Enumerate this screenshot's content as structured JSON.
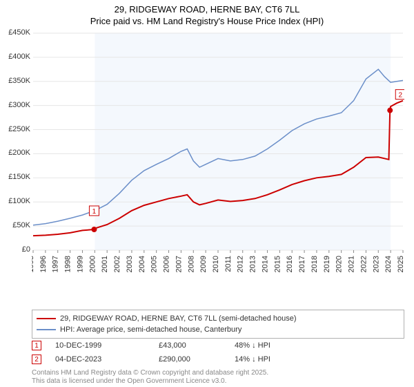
{
  "title": {
    "line1": "29, RIDGEWAY ROAD, HERNE BAY, CT6 7LL",
    "line2": "Price paid vs. HM Land Registry's House Price Index (HPI)",
    "fontsize": 13,
    "color": "#000000"
  },
  "chart": {
    "type": "line",
    "background_color": "#ffffff",
    "plot_band_color": "#f4f8fd",
    "plot_band_xstart": 2000,
    "plot_band_xend": 2024,
    "grid_color": "#e6e6e6",
    "axis_color": "#888888",
    "xlim": [
      1995,
      2025
    ],
    "x_ticks": [
      1995,
      1996,
      1997,
      1998,
      1999,
      2000,
      2001,
      2002,
      2003,
      2004,
      2005,
      2006,
      2007,
      2008,
      2009,
      2010,
      2011,
      2012,
      2013,
      2014,
      2015,
      2016,
      2017,
      2018,
      2019,
      2020,
      2021,
      2022,
      2023,
      2024,
      2025
    ],
    "x_tick_label_rotation": -90,
    "x_tick_fontsize": 11,
    "ylim": [
      0,
      450000
    ],
    "y_ticks": [
      0,
      50000,
      100000,
      150000,
      200000,
      250000,
      300000,
      350000,
      400000,
      450000
    ],
    "y_tick_labels": [
      "£0",
      "£50K",
      "£100K",
      "£150K",
      "£200K",
      "£250K",
      "£300K",
      "£350K",
      "£400K",
      "£450K"
    ],
    "y_tick_fontsize": 11,
    "series": [
      {
        "name": "hpi",
        "label": "HPI: Average price, semi-detached house, Canterbury",
        "color": "#6b8fc9",
        "line_width": 1.5,
        "x": [
          1995,
          1996,
          1997,
          1998,
          1999,
          2000,
          2001,
          2002,
          2003,
          2004,
          2005,
          2006,
          2007,
          2007.5,
          2008,
          2008.5,
          2009,
          2010,
          2011,
          2012,
          2013,
          2014,
          2015,
          2016,
          2017,
          2018,
          2019,
          2020,
          2021,
          2022,
          2023,
          2023.5,
          2024,
          2024.5,
          2025
        ],
        "y": [
          52000,
          55000,
          60000,
          66000,
          73000,
          82000,
          95000,
          118000,
          145000,
          165000,
          178000,
          190000,
          205000,
          210000,
          185000,
          172000,
          178000,
          190000,
          185000,
          188000,
          195000,
          210000,
          228000,
          248000,
          262000,
          272000,
          278000,
          285000,
          310000,
          355000,
          375000,
          360000,
          348000,
          350000,
          352000
        ]
      },
      {
        "name": "price_paid",
        "label": "29, RIDGEWAY ROAD, HERNE BAY, CT6 7LL (semi-detached house)",
        "color": "#cc0000",
        "line_width": 2,
        "x": [
          1995,
          1996,
          1997,
          1998,
          1999,
          1999.95,
          2000,
          2001,
          2002,
          2003,
          2004,
          2005,
          2006,
          2007,
          2007.5,
          2008,
          2008.5,
          2009,
          2010,
          2011,
          2012,
          2013,
          2014,
          2015,
          2016,
          2017,
          2018,
          2019,
          2020,
          2021,
          2022,
          2023,
          2023.85,
          2023.95,
          2024,
          2024.5,
          2025
        ],
        "y": [
          30000,
          31000,
          33000,
          36000,
          41000,
          43000,
          45000,
          53000,
          66000,
          82000,
          93000,
          100000,
          107000,
          112000,
          115000,
          100000,
          94000,
          97000,
          104000,
          101000,
          103000,
          107000,
          115000,
          125000,
          136000,
          144000,
          150000,
          153000,
          157000,
          172000,
          192000,
          193000,
          188000,
          290000,
          298000,
          305000,
          310000
        ]
      }
    ],
    "markers": [
      {
        "id": "1",
        "x": 1999.95,
        "y": 43000,
        "dot_color": "#cc0000",
        "label_border": "#cc0000",
        "label_pos": "above",
        "date": "10-DEC-1999",
        "price": "£43,000",
        "delta": "48% ↓ HPI"
      },
      {
        "id": "2",
        "x": 2023.95,
        "y": 290000,
        "dot_color": "#cc0000",
        "label_border": "#cc0000",
        "label_pos": "right",
        "date": "04-DEC-2023",
        "price": "£290,000",
        "delta": "14% ↓ HPI"
      }
    ]
  },
  "legend": {
    "border_color": "#b0b0b0",
    "fontsize": 11
  },
  "attribution": {
    "line1": "Contains HM Land Registry data © Crown copyright and database right 2025.",
    "line2": "This data is licensed under the Open Government Licence v3.0.",
    "color": "#888888",
    "fontsize": 10
  }
}
